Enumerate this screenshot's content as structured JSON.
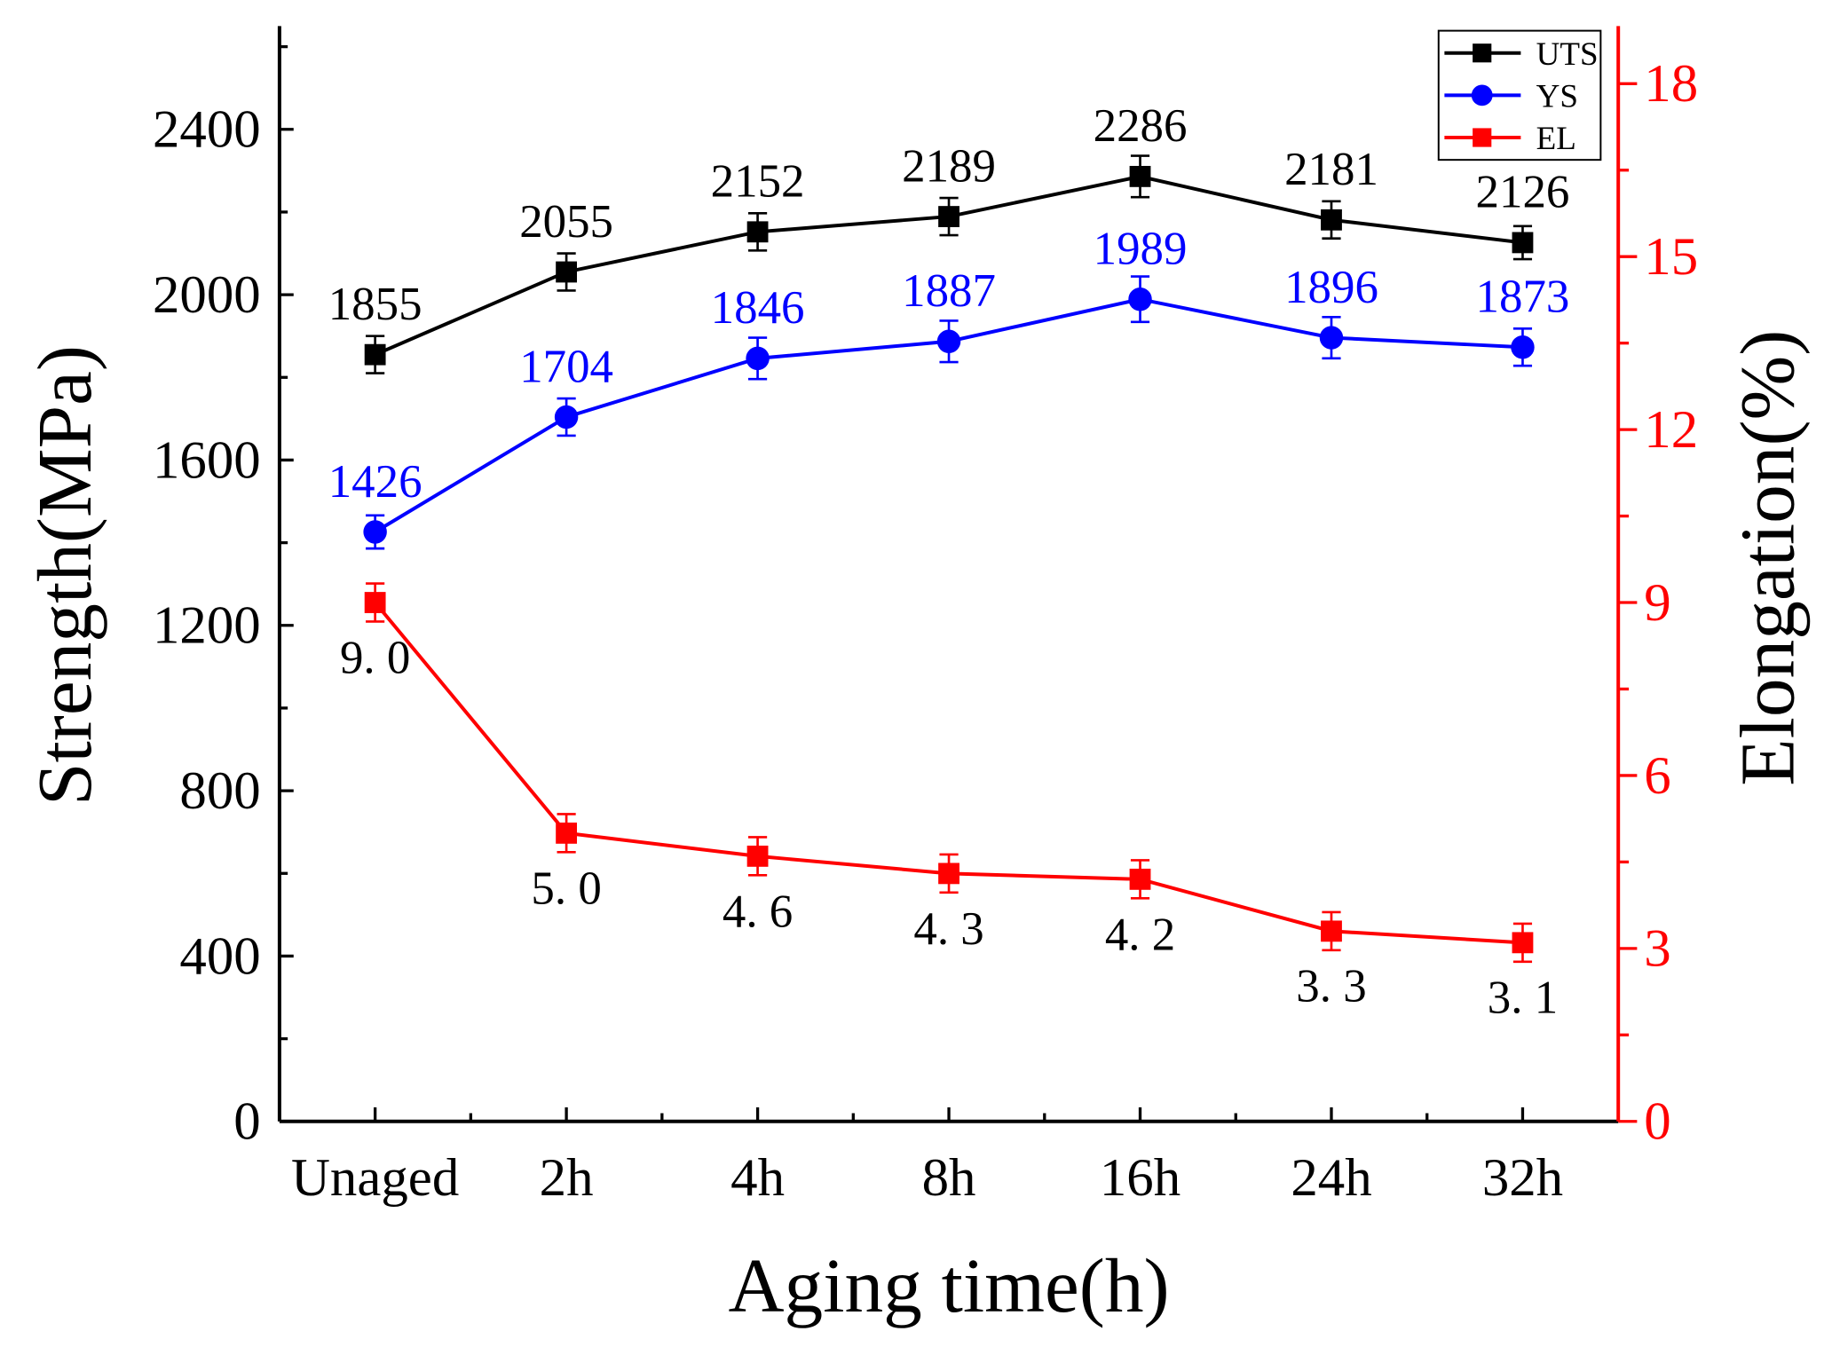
{
  "chart_data": {
    "type": "line",
    "title": "",
    "xlabel": "Aging time(h)",
    "ylabel_left": "Strength(MPa)",
    "ylabel_right": "Elongation(%)",
    "categories": [
      "Unaged",
      "2h",
      "4h",
      "8h",
      "16h",
      "24h",
      "32h"
    ],
    "ylim_left": [
      0,
      2650
    ],
    "ylim_right": [
      0,
      19
    ],
    "yticks_left": [
      0,
      400,
      800,
      1200,
      1600,
      2000,
      2400
    ],
    "yticks_right": [
      0,
      3,
      6,
      9,
      12,
      15,
      18
    ],
    "grid": false,
    "legend_position": "top-right",
    "series": [
      {
        "name": "UTS",
        "axis": "left",
        "color": "#000000",
        "marker": "square",
        "values": [
          1855,
          2055,
          2152,
          2189,
          2286,
          2181,
          2126
        ],
        "errors": [
          45,
          45,
          45,
          45,
          50,
          45,
          40
        ],
        "labels": [
          "1855",
          "2055",
          "2152",
          "2189",
          "2286",
          "2181",
          "2126"
        ]
      },
      {
        "name": "YS",
        "axis": "left",
        "color": "#0000ff",
        "marker": "circle",
        "values": [
          1426,
          1704,
          1846,
          1887,
          1989,
          1896,
          1873
        ],
        "errors": [
          40,
          45,
          50,
          50,
          55,
          50,
          45
        ],
        "labels": [
          "1426",
          "1704",
          "1846",
          "1887",
          "1989",
          "1896",
          "1873"
        ]
      },
      {
        "name": "EL",
        "axis": "right",
        "color": "#ff0000",
        "marker": "square",
        "values": [
          9.0,
          5.0,
          4.6,
          4.3,
          4.2,
          3.3,
          3.1
        ],
        "errors": [
          0.33,
          0.33,
          0.33,
          0.33,
          0.33,
          0.33,
          0.33
        ],
        "labels": [
          "9. 0",
          "5. 0",
          "4. 6",
          "4. 3",
          "4. 2",
          "3. 3",
          "3. 1"
        ]
      }
    ]
  }
}
